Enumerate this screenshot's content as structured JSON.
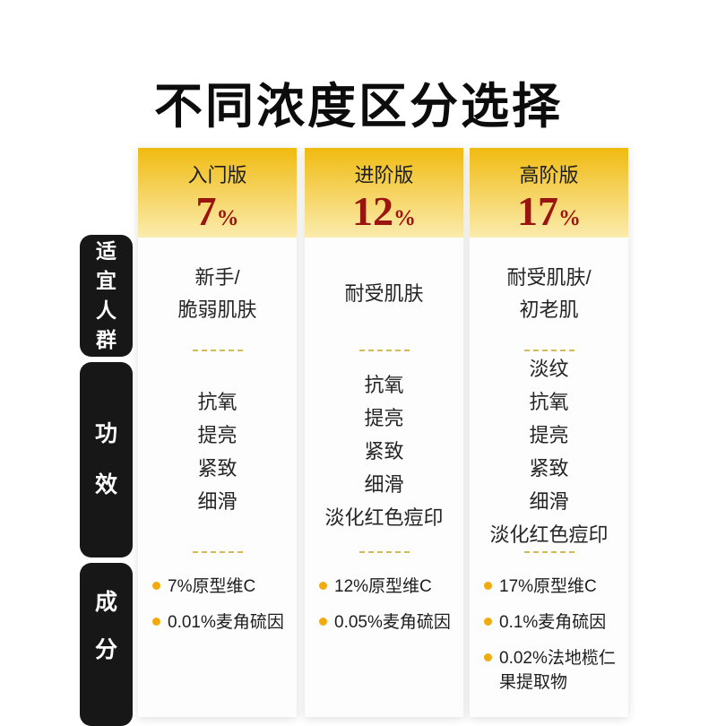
{
  "title": "不同浓度区分选择",
  "row_labels": [
    {
      "label": "适宜人群",
      "chars": [
        "适",
        "宜",
        "人",
        "群"
      ]
    },
    {
      "label": "功效",
      "chars": [
        "功",
        "效"
      ]
    },
    {
      "label": "成分",
      "chars": [
        "成",
        "分"
      ]
    }
  ],
  "columns": [
    {
      "version": "入门版",
      "percent": "7",
      "percent_unit": "%",
      "audience": [
        "新手/",
        "脆弱肌肤"
      ],
      "effects": [
        "抗氧",
        "提亮",
        "紧致",
        "细滑"
      ],
      "ingredients": [
        "7%原型维C",
        "0.01%麦角硫因"
      ]
    },
    {
      "version": "进阶版",
      "percent": "12",
      "percent_unit": "%",
      "audience": [
        "耐受肌肤"
      ],
      "effects": [
        "抗氧",
        "提亮",
        "紧致",
        "细滑",
        "淡化红色痘印"
      ],
      "ingredients": [
        "12%原型维C",
        "0.05%麦角硫因"
      ]
    },
    {
      "version": "高阶版",
      "percent": "17",
      "percent_unit": "%",
      "audience": [
        "耐受肌肤/",
        "初老肌"
      ],
      "effects": [
        "淡纹",
        "抗氧",
        "提亮",
        "紧致",
        "细滑",
        "淡化红色痘印"
      ],
      "ingredients": [
        "17%原型维C",
        "0.1%麦角硫因",
        "0.02%法地榄仁果提取物"
      ]
    }
  ],
  "colors": {
    "accent_gold": "#f0ba10",
    "percent_red": "#9a1410",
    "label_black": "#171717",
    "bullet_gold": "#f1ab0c",
    "divider_gold": "#d4ba55"
  },
  "chart_data": {
    "type": "table",
    "title": "不同浓度区分选择",
    "columns": [
      "入门版 7%",
      "进阶版 12%",
      "高阶版 17%"
    ],
    "row_headers": [
      "适宜人群",
      "功效",
      "成分"
    ],
    "rows": [
      [
        "新手/脆弱肌肤",
        "耐受肌肤",
        "耐受肌肤/初老肌"
      ],
      [
        "抗氧、提亮、紧致、细滑",
        "抗氧、提亮、紧致、细滑、淡化红色痘印",
        "淡纹、抗氧、提亮、紧致、细滑、淡化红色痘印"
      ],
      [
        "7%原型维C；0.01%麦角硫因",
        "12%原型维C；0.05%麦角硫因",
        "17%原型维C；0.1%麦角硫因；0.02%法地榄仁果提取物"
      ]
    ]
  }
}
